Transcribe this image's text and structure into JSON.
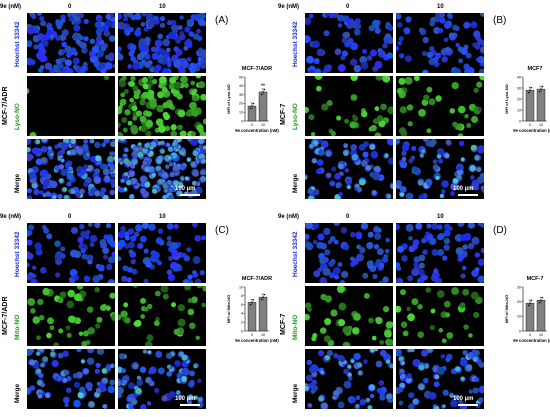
{
  "conc_axis_label": "9e (nM)",
  "conc_values": [
    "0",
    "10"
  ],
  "scale_bar_label": "100 µm",
  "quadrants": [
    {
      "letter": "(A)",
      "cell_line": "MCF-7/ADR",
      "rows": [
        "Hoechst 33342",
        "Lyso-NO",
        "Merge"
      ],
      "probe_color": "#1a9a1a",
      "chart": {
        "title": "MCF-7/ADR",
        "ylabel": "MFI of Lyso-NO",
        "xlabel": "9e concentration (nM)",
        "significance": "**",
        "ticks": [
          "0",
          "10",
          "20",
          "30",
          "40",
          "50"
        ]
      }
    },
    {
      "letter": "(B)",
      "cell_line": "MCF-7",
      "rows": [
        "Hoechst 33342",
        "Lyso-NO",
        "Merge"
      ],
      "probe_color": "#1a9a1a",
      "chart": {
        "title": "MCF7",
        "ylabel": "MFI of Lyso-NO",
        "xlabel": "9e concentration (nM)",
        "significance": "",
        "ticks": [
          "0",
          "10",
          "20",
          "30",
          "40"
        ]
      }
    },
    {
      "letter": "(C)",
      "cell_line": "MCF-7/ADR",
      "rows": [
        "Hoechst 33342",
        "Mito-NO",
        "Merge"
      ],
      "probe_color": "#1a9a1a",
      "chart": {
        "title": "MCF-7/ADR",
        "ylabel": "MFI of Mito-NO",
        "xlabel": "9e concentration (nM)",
        "significance": "",
        "ticks": [
          "0",
          "2",
          "4",
          "6",
          "8",
          "10"
        ]
      }
    },
    {
      "letter": "(D)",
      "cell_line": "MCF-7",
      "rows": [
        "Hoechst 33342",
        "Mito-NO",
        "Merge"
      ],
      "probe_color": "#1a9a1a",
      "chart": {
        "title": "MCF-7",
        "ylabel": "MFI of Mito-NO",
        "xlabel": "9e concentration (nM)",
        "significance": "",
        "ticks": [
          "0",
          "10",
          "20",
          "30"
        ]
      }
    }
  ],
  "chart_data": [
    {
      "type": "bar",
      "title": "MCF-7/ADR",
      "xlabel": "9e concentration (nM)",
      "ylabel": "MFI of Lyso-NO",
      "categories": [
        "0",
        "10"
      ],
      "values": [
        17,
        33
      ],
      "ylim": [
        0,
        50
      ]
    },
    {
      "type": "bar",
      "title": "MCF7",
      "xlabel": "9e concentration (nM)",
      "ylabel": "MFI of Lyso-NO",
      "categories": [
        "0",
        "10"
      ],
      "values": [
        28,
        29
      ],
      "ylim": [
        0,
        40
      ]
    },
    {
      "type": "bar",
      "title": "MCF-7/ADR",
      "xlabel": "9e concentration (nM)",
      "ylabel": "MFI of Mito-NO",
      "categories": [
        "0",
        "10"
      ],
      "values": [
        6.5,
        7.7
      ],
      "ylim": [
        0,
        10
      ]
    },
    {
      "type": "bar",
      "title": "MCF-7",
      "xlabel": "9e concentration (nM)",
      "ylabel": "MFI of Mito-NO",
      "categories": [
        "0",
        "10"
      ],
      "values": [
        19,
        21
      ],
      "ylim": [
        0,
        30
      ]
    }
  ]
}
